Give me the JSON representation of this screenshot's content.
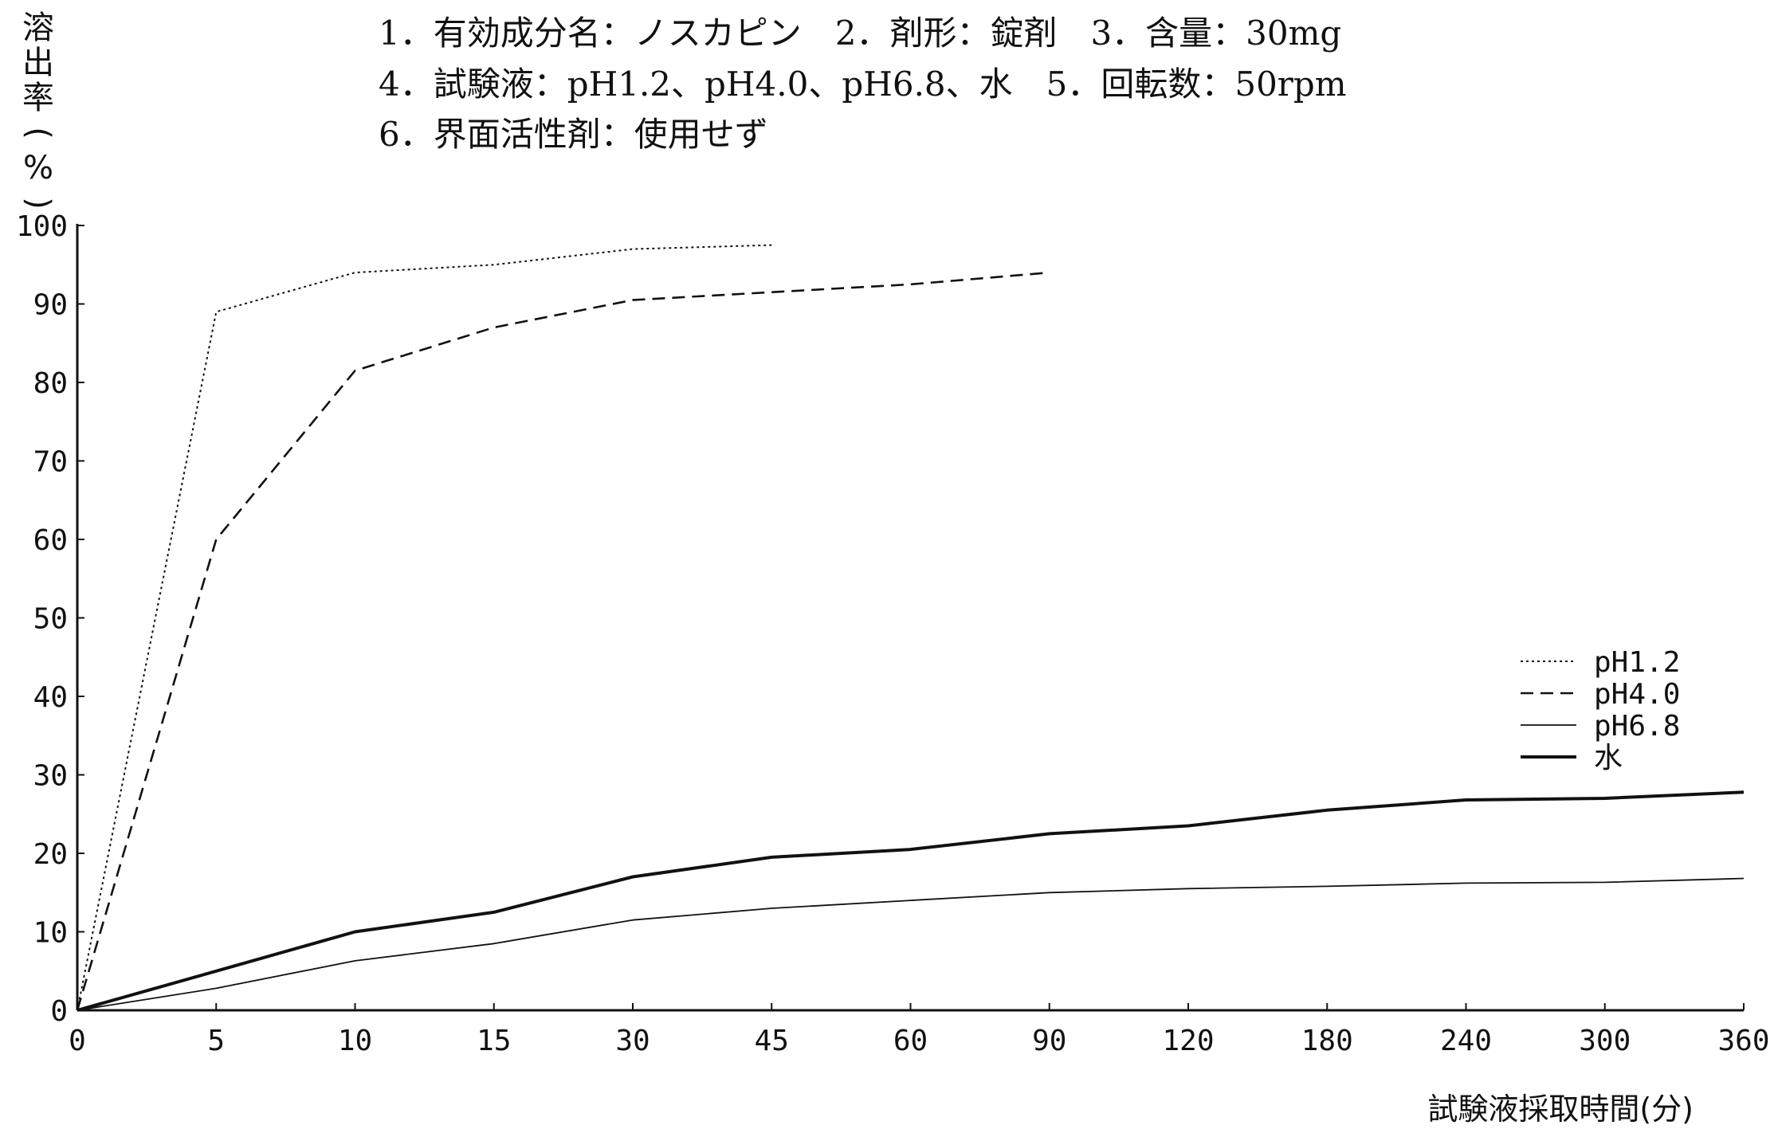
{
  "header_lines": [
    "1．有効成分名：ノスカピン　2．剤形：錠剤　3．含量：30mg",
    "4．試験液：pH1.2、pH4.0、pH6.8、水　5．回転数：50rpm",
    "6．界面活性剤：使用せず"
  ],
  "chart_data": {
    "type": "line",
    "title": "",
    "xlabel": "試験液採取時間(分)",
    "ylabel": "溶出率(%)",
    "x_categories": [
      "0",
      "5",
      "10",
      "15",
      "30",
      "45",
      "60",
      "90",
      "120",
      "180",
      "240",
      "300",
      "360"
    ],
    "y_ticks": [
      0,
      10,
      20,
      30,
      40,
      50,
      60,
      70,
      80,
      90,
      100
    ],
    "ylim": [
      0,
      100
    ],
    "legend_position": "right",
    "series": [
      {
        "name": "pH1.2",
        "style": "dotted",
        "x": [
          "0",
          "5",
          "10",
          "15",
          "30",
          "45"
        ],
        "y": [
          0,
          89,
          94,
          95,
          97,
          97.5
        ]
      },
      {
        "name": "pH4.0",
        "style": "dashed",
        "x": [
          "0",
          "5",
          "10",
          "15",
          "30",
          "45",
          "60",
          "90"
        ],
        "y": [
          0,
          60,
          81.5,
          87,
          90.5,
          91.5,
          92.5,
          94
        ]
      },
      {
        "name": "pH6.8",
        "style": "thin",
        "x": [
          "0",
          "5",
          "10",
          "15",
          "30",
          "45",
          "60",
          "90",
          "120",
          "180",
          "240",
          "300",
          "360"
        ],
        "y": [
          0,
          2.8,
          6.3,
          8.5,
          11.5,
          13,
          14,
          15,
          15.5,
          15.8,
          16.2,
          16.3,
          16.8
        ]
      },
      {
        "name": "水",
        "style": "thick",
        "x": [
          "0",
          "5",
          "10",
          "15",
          "30",
          "45",
          "60",
          "90",
          "120",
          "180",
          "240",
          "300",
          "360"
        ],
        "y": [
          0,
          5,
          10,
          12.5,
          17,
          19.5,
          20.5,
          22.5,
          23.5,
          25.5,
          26.8,
          27,
          27.8
        ]
      }
    ]
  },
  "colors": {
    "line": "#111111",
    "background": "#ffffff"
  }
}
